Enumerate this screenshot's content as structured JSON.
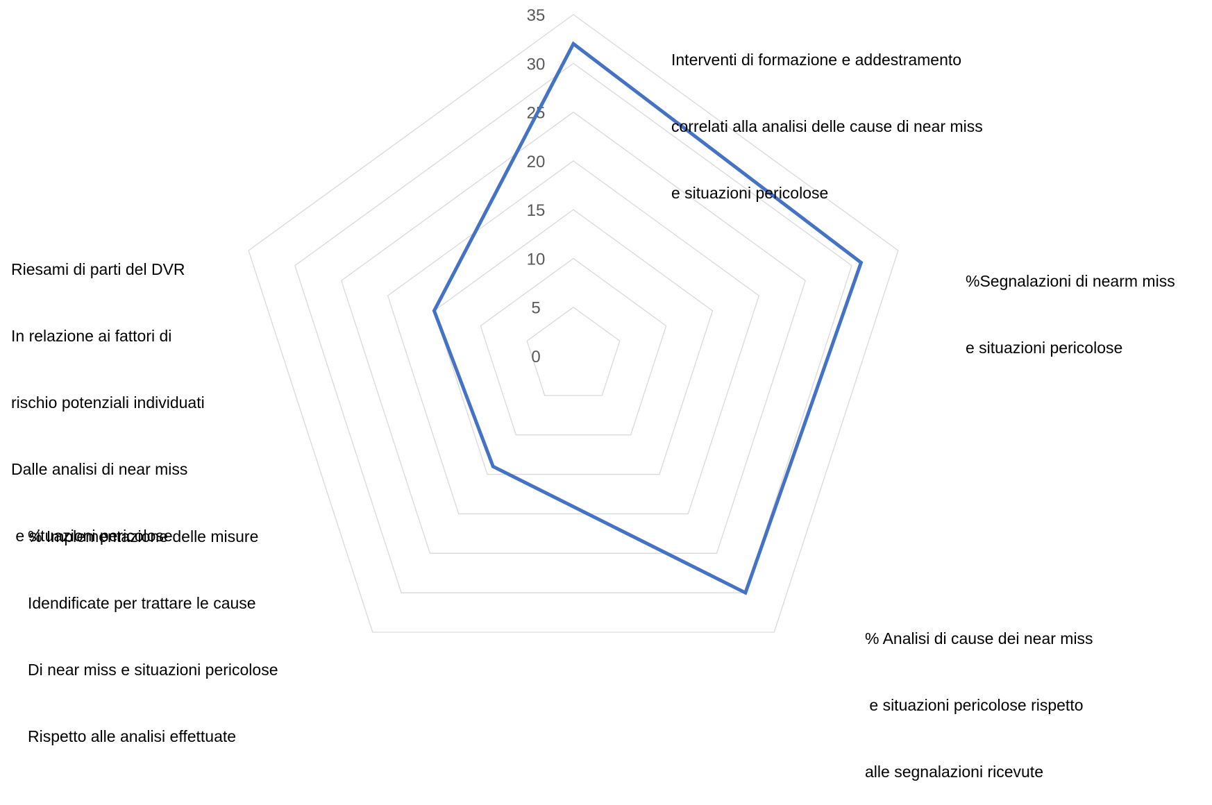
{
  "chart_data": {
    "type": "radar",
    "range": [
      0,
      35
    ],
    "tick_step": 5,
    "ticks": [
      "0",
      "5",
      "10",
      "15",
      "20",
      "25",
      "30",
      "35"
    ],
    "categories": [
      {
        "id": "formazione",
        "lines": [
          "Interventi di formazione e addestramento",
          "correlati alla analisi delle cause di near miss",
          "e situazioni pericolose"
        ]
      },
      {
        "id": "segnalazioni",
        "lines": [
          "%Segnalazioni di nearm miss",
          "e situazioni pericolose"
        ]
      },
      {
        "id": "analisi",
        "lines": [
          "% Analisi di cause dei near miss",
          " e situazioni pericolose rispetto",
          "alle segnalazioni ricevute"
        ]
      },
      {
        "id": "implementazione",
        "lines": [
          "% Implementazione delle misure",
          "Idendificate per trattare le cause",
          "Di near miss e situazioni pericolose",
          "Rispetto alle analisi effettuate"
        ]
      },
      {
        "id": "riesami",
        "lines": [
          "Riesami di parti del DVR",
          "In relazione ai fattori di",
          "rischio potenziali individuati",
          "Dalle analisi di near miss",
          " e situazioni pericolose"
        ]
      }
    ],
    "series": [
      {
        "values": [
          32,
          31,
          30,
          14,
          15
        ]
      }
    ],
    "colors": {
      "series": "#4472c4",
      "grid": "#d9d9d9",
      "tick_text": "#595959"
    },
    "grid": true,
    "legend": "none"
  }
}
